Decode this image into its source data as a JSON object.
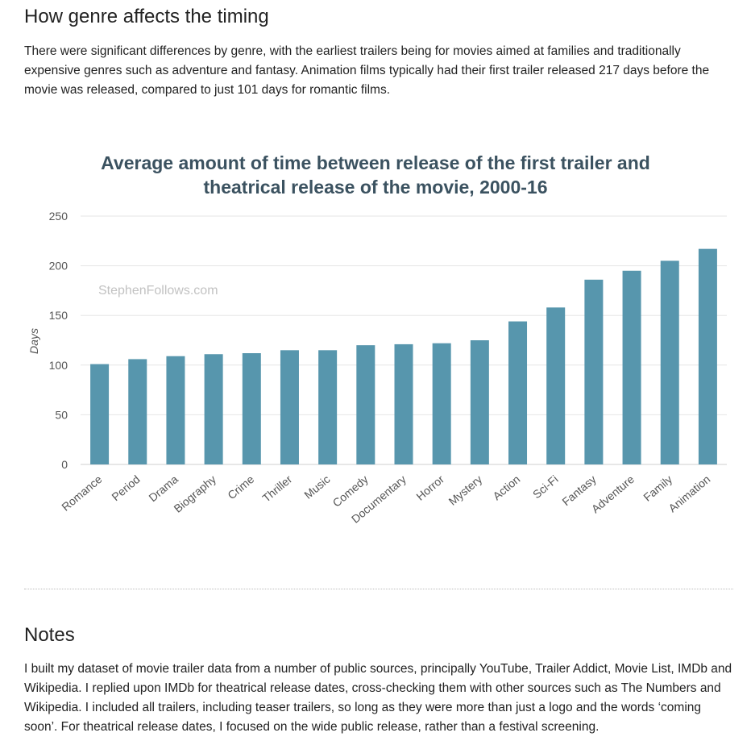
{
  "section": {
    "heading": "How genre affects the timing",
    "intro": "There were significant differences by genre, with the earliest trailers being for movies aimed at families and traditionally expensive genres such as adventure and fantasy.  Animation films typically had their first trailer released 217 days before the movie was released, compared to just 101 days for romantic films."
  },
  "chart_data": {
    "type": "bar",
    "title_line1": "Average amount of time between release of the first trailer and",
    "title_line2": "theatrical release of the movie, 2000-16",
    "watermark": "StephenFollows.com",
    "xlabel": "",
    "ylabel": "Days",
    "ylim": [
      0,
      250
    ],
    "yticks": [
      0,
      50,
      100,
      150,
      200,
      250
    ],
    "categories": [
      "Romance",
      "Period",
      "Drama",
      "Biography",
      "Crime",
      "Thriller",
      "Music",
      "Comedy",
      "Documentary",
      "Horror",
      "Mystery",
      "Action",
      "Sci-Fi",
      "Fantasy",
      "Adventure",
      "Family",
      "Animation"
    ],
    "values": [
      101,
      106,
      109,
      111,
      112,
      115,
      115,
      120,
      121,
      122,
      125,
      144,
      158,
      186,
      195,
      205,
      217
    ],
    "bar_color": "#5796ad",
    "grid": true,
    "legend": "none"
  },
  "notes": {
    "heading": "Notes",
    "body": "I built my dataset of movie trailer data from a number of public sources, principally YouTube, Trailer Addict, Movie List, IMDb and Wikipedia.  I replied upon IMDb for theatrical release dates, cross-checking them with other sources such as The Numbers and Wikipedia.  I included all trailers, including teaser trailers, so long as they were more than just a logo and the words ‘coming soon’.  For theatrical release dates, I focused on the wide public release, rather than a festival screening."
  }
}
